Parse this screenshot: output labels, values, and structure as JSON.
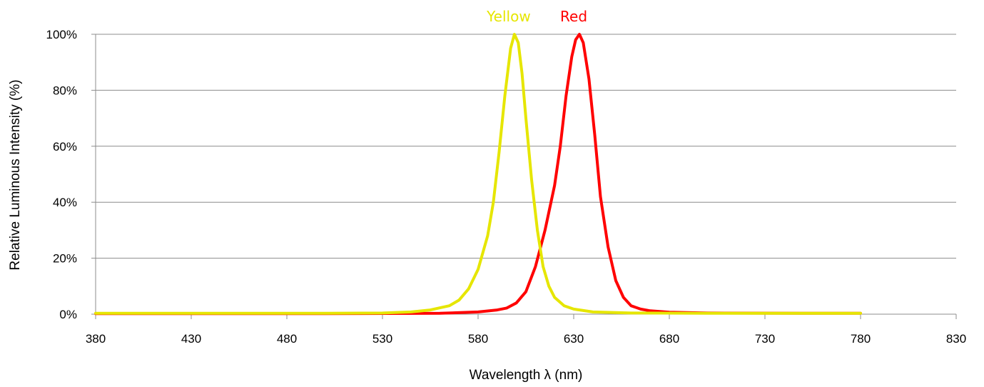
{
  "chart_data": {
    "type": "line",
    "xlabel": "Wavelength λ (nm)",
    "ylabel": "Relative Luminous Intensity (%)",
    "xlim": [
      380,
      830
    ],
    "ylim": [
      0,
      100
    ],
    "x_ticks": [
      "380",
      "430",
      "480",
      "530",
      "580",
      "630",
      "680",
      "730",
      "780",
      "830"
    ],
    "y_ticks": [
      "0%",
      "20%",
      "40%",
      "60%",
      "80%",
      "100%"
    ],
    "grid": "horizontal",
    "legend": "labels above peaks",
    "series": [
      {
        "name": "Yellow",
        "color": "#e6e600",
        "x": [
          380,
          450,
          500,
          530,
          545,
          555,
          565,
          570,
          575,
          580,
          585,
          588,
          591,
          594,
          597,
          599,
          601,
          603,
          605,
          608,
          611,
          614,
          617,
          620,
          625,
          630,
          640,
          660,
          700,
          750,
          780
        ],
        "y": [
          0.3,
          0.3,
          0.3,
          0.4,
          0.8,
          1.5,
          3,
          5,
          9,
          16,
          28,
          40,
          58,
          78,
          95,
          100,
          97,
          86,
          70,
          48,
          30,
          17,
          10,
          6,
          3,
          1.8,
          0.8,
          0.4,
          0.3,
          0.3,
          0.3
        ]
      },
      {
        "name": "Red",
        "color": "#ff0000",
        "x": [
          380,
          500,
          560,
          580,
          590,
          595,
          600,
          605,
          610,
          615,
          620,
          623,
          626,
          629,
          631,
          633,
          635,
          638,
          641,
          644,
          648,
          652,
          656,
          660,
          665,
          670,
          680,
          700,
          750,
          780
        ],
        "y": [
          0.2,
          0.2,
          0.3,
          0.8,
          1.5,
          2.2,
          4,
          8,
          17,
          30,
          46,
          60,
          78,
          92,
          98,
          100,
          97,
          84,
          64,
          42,
          24,
          12,
          6,
          3,
          1.8,
          1.2,
          0.7,
          0.4,
          0.3,
          0.3
        ]
      }
    ]
  }
}
